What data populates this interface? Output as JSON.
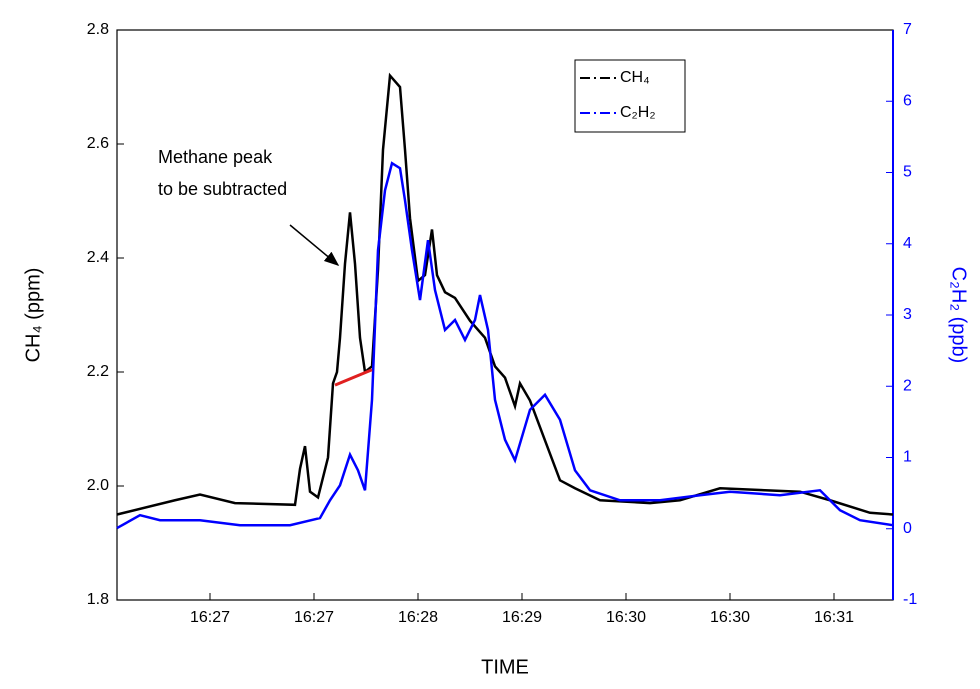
{
  "chart_data": {
    "type": "line",
    "x_label": "TIME",
    "y_label": "CH₄ (ppm)",
    "y2_label": "C₂H₂ (ppb)",
    "xlim": [
      0,
      776
    ],
    "xticks": [
      {
        "value": 93,
        "label": "16:27"
      },
      {
        "value": 197,
        "label": "16:27"
      },
      {
        "value": 301,
        "label": "16:28"
      },
      {
        "value": 405,
        "label": "16:29"
      },
      {
        "value": 509,
        "label": "16:30"
      },
      {
        "value": 613,
        "label": "16:30"
      },
      {
        "value": 717,
        "label": "16:31"
      }
    ],
    "ylim": [
      1.8,
      2.8
    ],
    "yticks": [
      1.8,
      {
        "value": 2,
        "label": "2.0"
      },
      2.2,
      2.4,
      2.6,
      2.8
    ],
    "y2lim": [
      -1,
      7
    ],
    "y2ticks": [
      -1,
      0,
      1,
      2,
      3,
      4,
      5,
      6,
      7
    ],
    "legend": "upper right",
    "series": [
      {
        "name": "CH₄",
        "color": "#000000",
        "x": [
          0,
          58,
          83,
          118,
          178,
          183,
          188,
          193,
          201,
          211,
          216,
          220,
          223,
          228,
          233,
          238,
          243,
          248,
          255,
          261,
          266,
          273,
          283,
          288,
          293,
          301,
          308,
          315,
          320,
          328,
          338,
          353,
          368,
          378,
          388,
          398,
          403,
          413,
          428,
          443,
          458,
          483,
          533,
          563,
          603,
          643,
          683,
          713,
          753,
          776
        ],
        "values": [
          1.95,
          1.975,
          1.985,
          1.97,
          1.967,
          2.03,
          2.07,
          1.99,
          1.98,
          2.05,
          2.18,
          2.2,
          2.26,
          2.39,
          2.48,
          2.39,
          2.26,
          2.2,
          2.21,
          2.38,
          2.59,
          2.72,
          2.7,
          2.59,
          2.47,
          2.36,
          2.37,
          2.45,
          2.37,
          2.34,
          2.33,
          2.29,
          2.26,
          2.21,
          2.19,
          2.14,
          2.18,
          2.15,
          2.08,
          2.01,
          1.996,
          1.975,
          1.97,
          1.975,
          1.996,
          1.993,
          1.99,
          1.975,
          1.953,
          1.95
        ]
      },
      {
        "name": "C₂H₂",
        "color": "#0000ff",
        "axis": "y2",
        "x": [
          0,
          23,
          43,
          83,
          123,
          173,
          203,
          213,
          223,
          233,
          241,
          248,
          255,
          261,
          268,
          275,
          283,
          288,
          295,
          303,
          311,
          318,
          328,
          338,
          348,
          358,
          363,
          371,
          378,
          388,
          398,
          413,
          428,
          443,
          458,
          473,
          503,
          543,
          583,
          613,
          663,
          703,
          723,
          743,
          776
        ],
        "values": [
          0.01,
          0.19,
          0.12,
          0.12,
          0.05,
          0.05,
          0.15,
          0.4,
          0.61,
          1.04,
          0.82,
          0.54,
          1.81,
          3.91,
          4.75,
          5.13,
          5.06,
          4.61,
          3.91,
          3.21,
          4.05,
          3.35,
          2.79,
          2.93,
          2.65,
          2.93,
          3.28,
          2.79,
          1.81,
          1.25,
          0.96,
          1.67,
          1.88,
          1.53,
          0.82,
          0.54,
          0.4,
          0.4,
          0.47,
          0.52,
          0.47,
          0.54,
          0.26,
          0.12,
          0.05
        ]
      }
    ],
    "subtraction_line": {
      "color": "#e02020",
      "x": [
        218,
        255
      ],
      "values": [
        2.177,
        2.204
      ]
    },
    "annotation": [
      "Methane peak",
      "to be subtracted"
    ]
  }
}
